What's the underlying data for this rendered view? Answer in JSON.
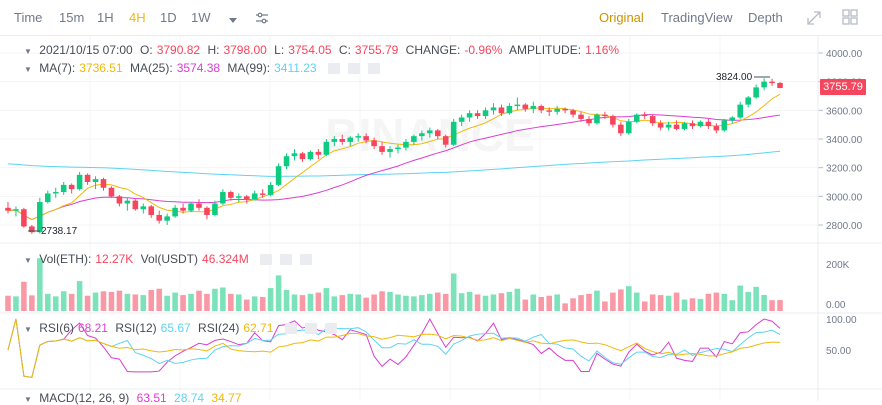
{
  "toolbar": {
    "intervals": [
      "Time",
      "15m",
      "1H",
      "4H",
      "1D",
      "1W"
    ],
    "active_interval": "4H",
    "views": [
      "Original",
      "TradingView",
      "Depth"
    ],
    "active_view": "Original"
  },
  "legend_main": {
    "date": "2021/10/15 07:00",
    "o_label": "O:",
    "o": "3790.82",
    "h_label": "H:",
    "h": "3798.00",
    "l_label": "L:",
    "l": "3754.05",
    "c_label": "C:",
    "c": "3755.79",
    "change_label": "CHANGE:",
    "change": "-0.96%",
    "amp_label": "AMPLITUDE:",
    "amp": "1.16%"
  },
  "legend_ma": {
    "ma7_label": "MA(7):",
    "ma7": "3736.51",
    "ma25_label": "MA(25):",
    "ma25": "3574.38",
    "ma99_label": "MA(99):",
    "ma99": "3411.23"
  },
  "legend_vol": {
    "eth_label": "Vol(ETH):",
    "eth": "12.27K",
    "usdt_label": "Vol(USDT)",
    "usdt": "46.324M"
  },
  "legend_rsi": {
    "r6_label": "RSI(6)",
    "r6": "68.21",
    "r12_label": "RSI(12)",
    "r12": "65.67",
    "r24_label": "RSI(24)",
    "r24": "62.71"
  },
  "legend_macd": {
    "label": "MACD(12, 26, 9)",
    "v1": "63.51",
    "v2": "28.74",
    "v3": "34.77"
  },
  "price_axis": [
    "4000.00",
    "3800.00",
    "3600.00",
    "3400.00",
    "3200.00",
    "3000.00",
    "2800.00"
  ],
  "vol_axis": [
    "200K",
    "0.00"
  ],
  "rsi_axis": [
    "100.00",
    "50.00"
  ],
  "last_price": "3755.79",
  "high_marker": "3824.00",
  "low_marker": "2738.17",
  "watermark": "BINANCE",
  "colors": {
    "up": "#0ecb81",
    "down": "#f6465d",
    "ma7": "#f0b90b",
    "ma25": "#d93fd1",
    "ma99": "#5ed3f3",
    "accent": "#f0b90b"
  },
  "chart_data": {
    "type": "candlestick",
    "ylim": [
      2700,
      4050
    ],
    "candles": [
      [
        2920,
        2960,
        2880,
        2900
      ],
      [
        2900,
        2930,
        2860,
        2910
      ],
      [
        2910,
        2920,
        2780,
        2790
      ],
      [
        2790,
        2800,
        2738.17,
        2750
      ],
      [
        2750,
        2990,
        2740,
        2960
      ],
      [
        2960,
        3040,
        2950,
        3020
      ],
      [
        3020,
        3060,
        2990,
        3030
      ],
      [
        3030,
        3100,
        3010,
        3080
      ],
      [
        3080,
        3090,
        3020,
        3050
      ],
      [
        3050,
        3170,
        3040,
        3150
      ],
      [
        3150,
        3160,
        3080,
        3100
      ],
      [
        3100,
        3140,
        3050,
        3120
      ],
      [
        3120,
        3130,
        3040,
        3060
      ],
      [
        3060,
        3070,
        2990,
        3000
      ],
      [
        3000,
        3010,
        2930,
        2950
      ],
      [
        2950,
        2990,
        2900,
        2970
      ],
      [
        2970,
        2980,
        2900,
        2910
      ],
      [
        2910,
        2950,
        2880,
        2930
      ],
      [
        2930,
        2940,
        2850,
        2870
      ],
      [
        2870,
        2900,
        2810,
        2830
      ],
      [
        2830,
        2880,
        2800,
        2860
      ],
      [
        2860,
        2940,
        2850,
        2920
      ],
      [
        2920,
        2950,
        2880,
        2900
      ],
      [
        2900,
        2960,
        2890,
        2950
      ],
      [
        2950,
        2980,
        2900,
        2920
      ],
      [
        2920,
        2930,
        2840,
        2870
      ],
      [
        2870,
        2970,
        2860,
        2950
      ],
      [
        2950,
        3050,
        2940,
        3030
      ],
      [
        3030,
        3040,
        2970,
        2990
      ],
      [
        2990,
        3020,
        2960,
        3000
      ],
      [
        3000,
        3010,
        2950,
        2980
      ],
      [
        2980,
        3040,
        2970,
        3020
      ],
      [
        3020,
        3050,
        2990,
        3010
      ],
      [
        3010,
        3100,
        3000,
        3080
      ],
      [
        3080,
        3230,
        3070,
        3210
      ],
      [
        3210,
        3300,
        3190,
        3280
      ],
      [
        3280,
        3330,
        3250,
        3300
      ],
      [
        3300,
        3310,
        3240,
        3260
      ],
      [
        3260,
        3320,
        3250,
        3310
      ],
      [
        3310,
        3330,
        3260,
        3290
      ],
      [
        3290,
        3400,
        3280,
        3380
      ],
      [
        3380,
        3420,
        3350,
        3400
      ],
      [
        3400,
        3430,
        3360,
        3380
      ],
      [
        3380,
        3420,
        3350,
        3410
      ],
      [
        3410,
        3440,
        3380,
        3420
      ],
      [
        3420,
        3440,
        3370,
        3390
      ],
      [
        3390,
        3410,
        3330,
        3350
      ],
      [
        3350,
        3380,
        3290,
        3310
      ],
      [
        3310,
        3350,
        3270,
        3330
      ],
      [
        3330,
        3360,
        3300,
        3340
      ],
      [
        3340,
        3400,
        3320,
        3380
      ],
      [
        3380,
        3430,
        3360,
        3420
      ],
      [
        3420,
        3460,
        3390,
        3440
      ],
      [
        3440,
        3480,
        3410,
        3460
      ],
      [
        3460,
        3470,
        3400,
        3420
      ],
      [
        3420,
        3430,
        3340,
        3360
      ],
      [
        3360,
        3540,
        3350,
        3520
      ],
      [
        3520,
        3570,
        3490,
        3550
      ],
      [
        3550,
        3600,
        3520,
        3580
      ],
      [
        3580,
        3600,
        3540,
        3560
      ],
      [
        3560,
        3620,
        3540,
        3600
      ],
      [
        3600,
        3650,
        3570,
        3620
      ],
      [
        3620,
        3640,
        3560,
        3580
      ],
      [
        3580,
        3650,
        3570,
        3630
      ],
      [
        3630,
        3690,
        3600,
        3640
      ],
      [
        3640,
        3650,
        3590,
        3610
      ],
      [
        3610,
        3660,
        3580,
        3630
      ],
      [
        3630,
        3640,
        3580,
        3600
      ],
      [
        3600,
        3620,
        3560,
        3590
      ],
      [
        3590,
        3630,
        3570,
        3610
      ],
      [
        3610,
        3620,
        3580,
        3600
      ],
      [
        3600,
        3610,
        3550,
        3570
      ],
      [
        3570,
        3590,
        3520,
        3540
      ],
      [
        3540,
        3560,
        3490,
        3510
      ],
      [
        3510,
        3580,
        3500,
        3570
      ],
      [
        3570,
        3590,
        3540,
        3560
      ],
      [
        3560,
        3570,
        3480,
        3500
      ],
      [
        3500,
        3520,
        3420,
        3440
      ],
      [
        3440,
        3540,
        3430,
        3520
      ],
      [
        3520,
        3580,
        3510,
        3570
      ],
      [
        3570,
        3590,
        3540,
        3560
      ],
      [
        3560,
        3570,
        3490,
        3510
      ],
      [
        3510,
        3530,
        3460,
        3480
      ],
      [
        3480,
        3520,
        3460,
        3500
      ],
      [
        3500,
        3530,
        3460,
        3470
      ],
      [
        3470,
        3520,
        3460,
        3510
      ],
      [
        3510,
        3530,
        3470,
        3490
      ],
      [
        3490,
        3530,
        3480,
        3520
      ],
      [
        3520,
        3540,
        3470,
        3490
      ],
      [
        3490,
        3510,
        3440,
        3460
      ],
      [
        3460,
        3540,
        3450,
        3530
      ],
      [
        3530,
        3560,
        3510,
        3550
      ],
      [
        3550,
        3660,
        3540,
        3640
      ],
      [
        3640,
        3700,
        3620,
        3690
      ],
      [
        3690,
        3780,
        3680,
        3760
      ],
      [
        3760,
        3824,
        3740,
        3800
      ],
      [
        3800,
        3820,
        3770,
        3790
      ],
      [
        3790.82,
        3798,
        3754.05,
        3755.79
      ]
    ],
    "volume_max": 250000,
    "rsi_range": [
      0,
      100
    ]
  }
}
